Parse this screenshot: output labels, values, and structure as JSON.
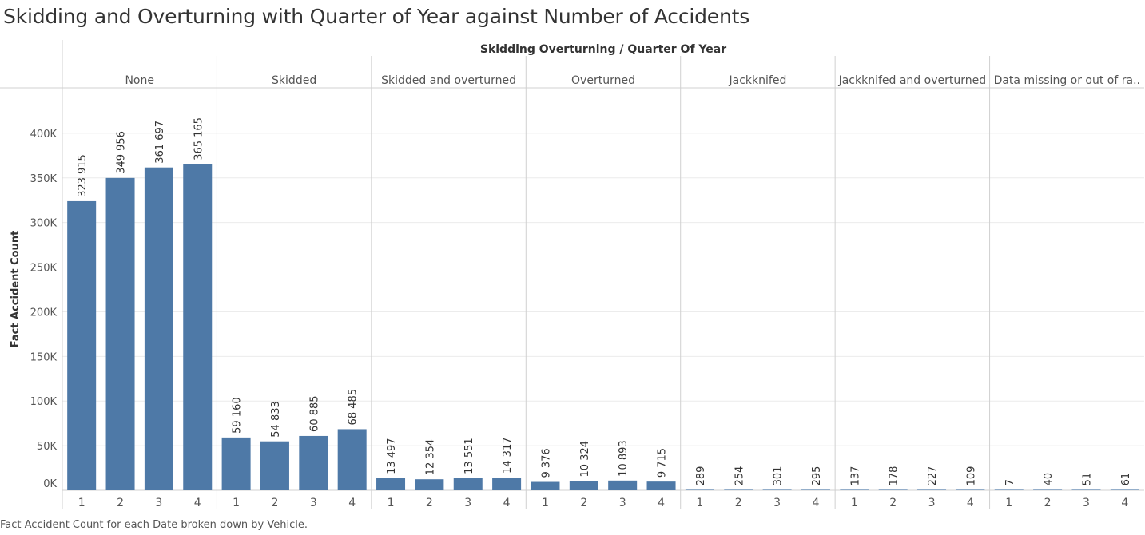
{
  "title": "Skidding and Overturning with Quarter of Year against Number of Accidents",
  "caption": "Fact Accident Count for each Date broken down by Vehicle.",
  "colors": {
    "bar": "#4e79a7",
    "grid": "#ececec",
    "divider": "#d0d0d0"
  },
  "chart_data": {
    "type": "bar",
    "header": "Skidding Overturning  /  Quarter Of Year",
    "ylabel": "Fact Accident Count",
    "ylim": [
      0,
      450000
    ],
    "yticks": [
      {
        "value": 0,
        "label": "0K"
      },
      {
        "value": 50000,
        "label": "50K"
      },
      {
        "value": 100000,
        "label": "100K"
      },
      {
        "value": 150000,
        "label": "150K"
      },
      {
        "value": 200000,
        "label": "200K"
      },
      {
        "value": 250000,
        "label": "250K"
      },
      {
        "value": 300000,
        "label": "300K"
      },
      {
        "value": 350000,
        "label": "350K"
      },
      {
        "value": 400000,
        "label": "400K"
      }
    ],
    "categories": [
      "1",
      "2",
      "3",
      "4"
    ],
    "panels": [
      {
        "name": "None",
        "values": [
          323915,
          349956,
          361697,
          365165
        ],
        "labels": [
          "323 915",
          "349 956",
          "361 697",
          "365 165"
        ]
      },
      {
        "name": "Skidded",
        "values": [
          59160,
          54833,
          60885,
          68485
        ],
        "labels": [
          "59 160",
          "54 833",
          "60 885",
          "68 485"
        ]
      },
      {
        "name": "Skidded and overturned",
        "values": [
          13497,
          12354,
          13551,
          14317
        ],
        "labels": [
          "13 497",
          "12 354",
          "13 551",
          "14 317"
        ]
      },
      {
        "name": "Overturned",
        "values": [
          9376,
          10324,
          10893,
          9715
        ],
        "labels": [
          "9 376",
          "10 324",
          "10 893",
          "9 715"
        ]
      },
      {
        "name": "Jackknifed",
        "values": [
          289,
          254,
          301,
          295
        ],
        "labels": [
          "289",
          "254",
          "301",
          "295"
        ]
      },
      {
        "name": "Jackknifed and overturned",
        "values": [
          137,
          178,
          227,
          109
        ],
        "labels": [
          "137",
          "178",
          "227",
          "109"
        ]
      },
      {
        "name": "Data missing or out of ra..",
        "values": [
          7,
          40,
          51,
          61
        ],
        "labels": [
          "7",
          "40",
          "51",
          "61"
        ]
      }
    ]
  }
}
